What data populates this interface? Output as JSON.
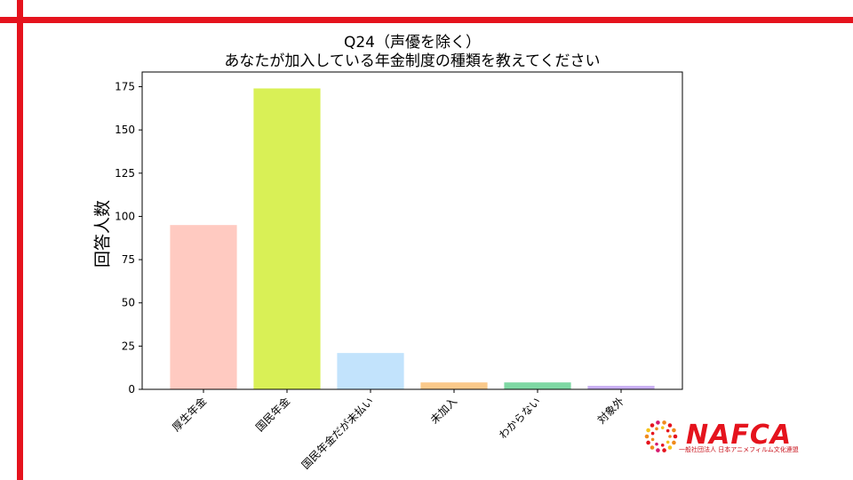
{
  "chart_data": {
    "type": "bar",
    "title": "Q24（声優を除く）",
    "subtitle": "あなたが加入している年金制度の種類を教えてください",
    "xlabel": "",
    "ylabel": "回答人数",
    "categories": [
      "厚生年金",
      "国民年金",
      "国民年金だが未払い",
      "未加入",
      "わからない",
      "対象外"
    ],
    "values": [
      95,
      174,
      21,
      4,
      4,
      2
    ],
    "colors": [
      "#ffcac1",
      "#d9f056",
      "#c2e3fc",
      "#fbc98a",
      "#7ed8a3",
      "#c8aef2"
    ],
    "yticks": [
      0,
      25,
      50,
      75,
      100,
      125,
      150,
      175
    ],
    "ylim": [
      0,
      183.5
    ],
    "grid": false
  },
  "logo": {
    "name": "NAFCA",
    "org": "一般社団法人 日本アニメフィルム文化連盟",
    "accent": "#e5131d"
  },
  "frame": {
    "accent": "#e5131d"
  }
}
